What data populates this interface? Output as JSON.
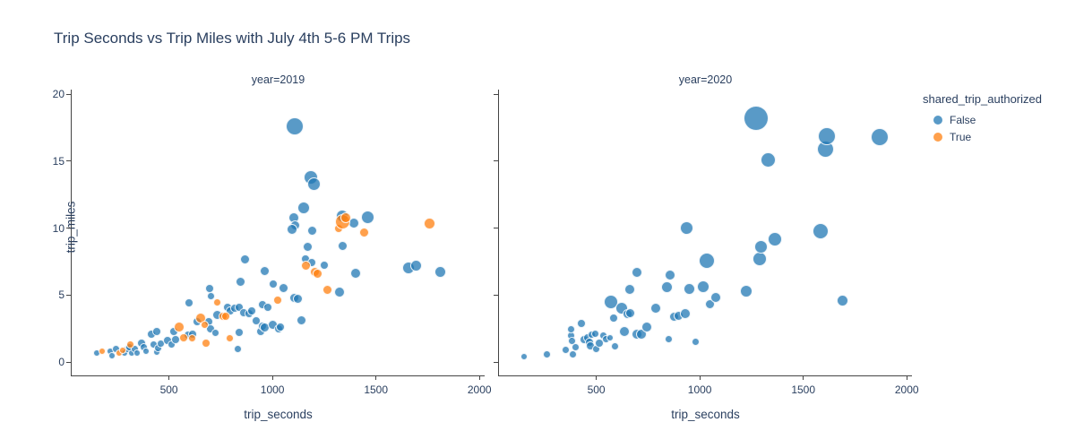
{
  "title": "Trip Seconds vs Trip Miles with July 4th 5-6 PM Trips",
  "legend": {
    "title": "shared_trip_authorized",
    "items": [
      {
        "label": "False",
        "color": "#1f77b4"
      },
      {
        "label": "True",
        "color": "#ff7f0e"
      }
    ]
  },
  "axes": {
    "x_label": "trip_seconds",
    "y_label": "trip_miles",
    "x_ticks": [
      500,
      1000,
      1500,
      2000
    ],
    "y_ticks": [
      0,
      5,
      10,
      15,
      20
    ],
    "x_range": [
      30,
      2025
    ],
    "y_range": [
      -1,
      20.35
    ],
    "grid": false
  },
  "colors": {
    "false_marker": "#1f77b4",
    "true_marker": "#ff7f0e",
    "text": "#2a3f5f",
    "axis_line": "#444444"
  },
  "marker_opacity": 0.74,
  "chart_data": [
    {
      "type": "scatter",
      "facet_label": "year=2019",
      "x_field": "trip_seconds",
      "y_field": "trip_miles",
      "series": [
        {
          "name": "False",
          "color": "#1f77b4",
          "points": [
            [
              150,
              0.7,
              3
            ],
            [
              216,
              0.8,
              3
            ],
            [
              225,
              0.5,
              3
            ],
            [
              246,
              1.0,
              3.5
            ],
            [
              286,
              0.7,
              3
            ],
            [
              299,
              0.95,
              3.5
            ],
            [
              308,
              1.1,
              3.5
            ],
            [
              321,
              0.7,
              3
            ],
            [
              334,
              0.95,
              3.5
            ],
            [
              347,
              0.7,
              3
            ],
            [
              369,
              1.4,
              4
            ],
            [
              378,
              1.1,
              3.5
            ],
            [
              391,
              0.8,
              3
            ],
            [
              417,
              2.1,
              4
            ],
            [
              426,
              1.3,
              3.5
            ],
            [
              443,
              0.75,
              3
            ],
            [
              443,
              2.3,
              4
            ],
            [
              448,
              1.05,
              3.5
            ],
            [
              461,
              1.4,
              3.5
            ],
            [
              491,
              1.6,
              4
            ],
            [
              513,
              1.3,
              3.5
            ],
            [
              522,
              2.25,
              4
            ],
            [
              531,
              1.7,
              4
            ],
            [
              592,
              2.0,
              4
            ],
            [
              596,
              4.4,
              4
            ],
            [
              614,
              2.1,
              4
            ],
            [
              636,
              3.0,
              4
            ],
            [
              693,
              3.0,
              4
            ],
            [
              697,
              5.5,
              4
            ],
            [
              701,
              2.5,
              4
            ],
            [
              701,
              4.9,
              3.5
            ],
            [
              723,
              2.2,
              3.5
            ],
            [
              732,
              3.5,
              4.5
            ],
            [
              784,
              4.1,
              4
            ],
            [
              797,
              3.8,
              4
            ],
            [
              819,
              4.0,
              4
            ],
            [
              832,
              1.0,
              3.5
            ],
            [
              841,
              2.2,
              4
            ],
            [
              841,
              4.1,
              4
            ],
            [
              845,
              6.0,
              4.5
            ],
            [
              863,
              3.7,
              4
            ],
            [
              867,
              7.7,
              4.5
            ],
            [
              885,
              3.6,
              4
            ],
            [
              902,
              3.85,
              4
            ],
            [
              920,
              3.1,
              4
            ],
            [
              942,
              2.3,
              4
            ],
            [
              950,
              2.7,
              4
            ],
            [
              950,
              4.3,
              4
            ],
            [
              964,
              2.6,
              4.5
            ],
            [
              964,
              6.8,
              4.5
            ],
            [
              977,
              4.1,
              4
            ],
            [
              1003,
              2.8,
              4.5
            ],
            [
              1003,
              5.8,
              4
            ],
            [
              1029,
              2.5,
              4
            ],
            [
              1038,
              2.6,
              4
            ],
            [
              1052,
              5.5,
              4.5
            ],
            [
              1104,
              4.8,
              4.5
            ],
            [
              1121,
              4.7,
              4.5
            ],
            [
              1138,
              3.1,
              4.5
            ],
            [
              1160,
              7.7,
              4
            ],
            [
              1190,
              7.4,
              4
            ],
            [
              1250,
              7.2,
              4
            ],
            [
              1322,
              5.2,
              5
            ],
            [
              1340,
              8.7,
              4.5
            ],
            [
              1169,
              8.6,
              4.5
            ],
            [
              1401,
              6.6,
              5
            ],
            [
              1659,
              7.0,
              6
            ],
            [
              1694,
              7.2,
              5.5
            ],
            [
              1812,
              6.7,
              5.5
            ],
            [
              1108,
              17.6,
              9
            ],
            [
              1186,
              13.8,
              7
            ],
            [
              1200,
              13.3,
              6.5
            ],
            [
              1152,
              11.5,
              6
            ],
            [
              1104,
              10.8,
              5
            ],
            [
              1108,
              10.2,
              4.5
            ],
            [
              1095,
              9.9,
              5
            ],
            [
              1190,
              9.8,
              4.5
            ],
            [
              1335,
              10.9,
              6
            ],
            [
              1393,
              10.4,
              5
            ],
            [
              1460,
              10.8,
              6.5
            ]
          ]
        },
        {
          "name": "True",
          "color": "#ff7f0e",
          "points": [
            [
              177,
              0.8,
              3
            ],
            [
              260,
              0.7,
              3
            ],
            [
              277,
              0.9,
              3
            ],
            [
              312,
              1.3,
              3.5
            ],
            [
              548,
              2.6,
              5
            ],
            [
              570,
              1.8,
              4
            ],
            [
              614,
              1.8,
              3.5
            ],
            [
              653,
              3.3,
              5
            ],
            [
              671,
              2.8,
              3.5
            ],
            [
              680,
              1.4,
              4
            ],
            [
              732,
              4.45,
              3.5
            ],
            [
              760,
              3.4,
              4
            ],
            [
              775,
              3.45,
              4
            ],
            [
              793,
              1.8,
              3.5
            ],
            [
              1025,
              4.6,
              4
            ],
            [
              1160,
              7.2,
              4.5
            ],
            [
              1205,
              6.75,
              4.5
            ],
            [
              1220,
              6.6,
              4.5
            ],
            [
              1265,
              5.4,
              4.5
            ],
            [
              1320,
              10.0,
              4
            ],
            [
              1340,
              10.5,
              7.5
            ],
            [
              1355,
              10.8,
              5
            ],
            [
              1445,
              9.7,
              4.5
            ],
            [
              1760,
              10.35,
              5.5
            ]
          ]
        }
      ]
    },
    {
      "type": "scatter",
      "facet_label": "year=2020",
      "x_field": "trip_seconds",
      "y_field": "trip_miles",
      "series": [
        {
          "name": "False",
          "color": "#1f77b4",
          "points": [
            [
              150,
              0.4,
              3
            ],
            [
              260,
              0.6,
              3.5
            ],
            [
              352,
              0.9,
              3.5
            ],
            [
              377,
              2.0,
              3.5
            ],
            [
              377,
              2.45,
              3.5
            ],
            [
              381,
              1.6,
              3.5
            ],
            [
              386,
              0.6,
              3.5
            ],
            [
              398,
              1.1,
              3.5
            ],
            [
              428,
              2.9,
              4
            ],
            [
              441,
              1.7,
              4
            ],
            [
              458,
              1.8,
              4
            ],
            [
              466,
              1.5,
              4
            ],
            [
              470,
              1.2,
              4
            ],
            [
              479,
              2.05,
              3.5
            ],
            [
              496,
              2.1,
              3.5
            ],
            [
              500,
              1.0,
              3.5
            ],
            [
              513,
              1.4,
              4
            ],
            [
              534,
              2.0,
              3.5
            ],
            [
              547,
              1.7,
              3.5
            ],
            [
              568,
              1.8,
              3
            ],
            [
              585,
              3.25,
              4
            ],
            [
              570,
              4.5,
              7
            ],
            [
              589,
              1.2,
              3.5
            ],
            [
              623,
              4.0,
              6
            ],
            [
              636,
              2.25,
              5
            ],
            [
              652,
              3.6,
              4.5
            ],
            [
              664,
              3.65,
              4.5
            ],
            [
              661,
              5.4,
              5
            ],
            [
              695,
              2.1,
              5
            ],
            [
              695,
              6.7,
              5
            ],
            [
              716,
              2.05,
              5
            ],
            [
              746,
              2.6,
              5
            ],
            [
              788,
              4.05,
              5
            ],
            [
              843,
              5.6,
              5.5
            ],
            [
              850,
              1.7,
              3.5
            ],
            [
              856,
              6.5,
              5
            ],
            [
              877,
              3.4,
              4.5
            ],
            [
              898,
              3.45,
              4.5
            ],
            [
              928,
              3.6,
              5
            ],
            [
              937,
              10.0,
              6.5
            ],
            [
              949,
              5.45,
              5.5
            ],
            [
              980,
              1.5,
              3.5
            ],
            [
              1017,
              5.6,
              6
            ],
            [
              1034,
              7.6,
              8
            ],
            [
              1051,
              4.3,
              4.5
            ],
            [
              1077,
              4.8,
              5
            ],
            [
              1225,
              5.3,
              6
            ],
            [
              1271,
              18.2,
              13
            ],
            [
              1289,
              7.7,
              7
            ],
            [
              1297,
              8.6,
              6.5
            ],
            [
              1331,
              15.1,
              7.5
            ],
            [
              1365,
              9.2,
              7
            ],
            [
              1585,
              9.8,
              8
            ],
            [
              1607,
              15.9,
              8.5
            ],
            [
              1615,
              16.9,
              9
            ],
            [
              1691,
              4.6,
              5.5
            ],
            [
              1869,
              16.8,
              9
            ]
          ]
        },
        {
          "name": "True",
          "color": "#ff7f0e",
          "points": []
        }
      ]
    }
  ]
}
